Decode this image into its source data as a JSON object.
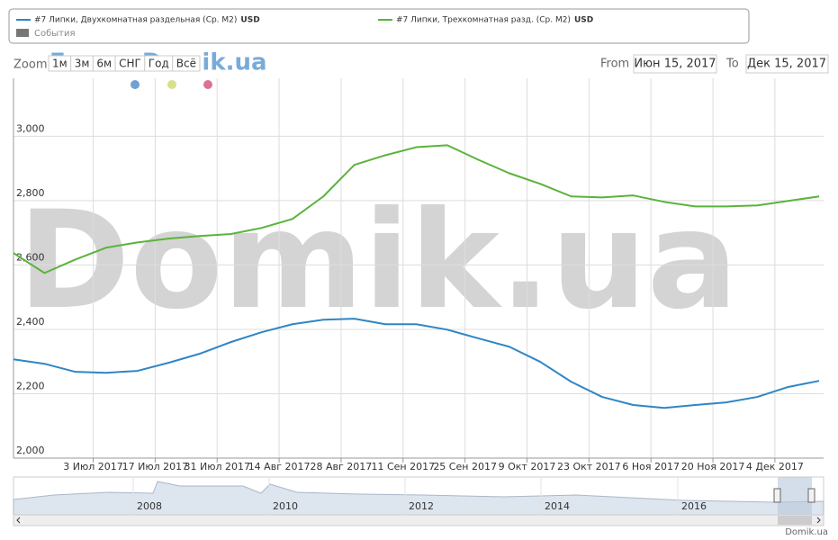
{
  "chart_data": {
    "type": "line",
    "watermark": "Domik.ua",
    "forum_watermark": "Forum.Domik.ua",
    "credit": "Domik.ua",
    "events_label": "События",
    "currency": "USD",
    "zoom_label": "Zoom",
    "zoom_buttons": [
      "1м",
      "3м",
      "6м",
      "СНГ",
      "Год",
      "Всё"
    ],
    "from_label": "From",
    "from_value": "Июн 15, 2017",
    "to_label": "To",
    "to_value": "Дек 15, 2017",
    "navigator_labels": [
      "2008",
      "2010",
      "2012",
      "2014",
      "2016"
    ],
    "x": [
      "2017-06-15",
      "2017-06-22",
      "2017-06-29",
      "2017-07-06",
      "2017-07-13",
      "2017-07-20",
      "2017-07-27",
      "2017-08-03",
      "2017-08-10",
      "2017-08-17",
      "2017-08-24",
      "2017-08-31",
      "2017-09-07",
      "2017-09-14",
      "2017-09-21",
      "2017-09-28",
      "2017-10-05",
      "2017-10-12",
      "2017-10-19",
      "2017-10-26",
      "2017-11-02",
      "2017-11-09",
      "2017-11-16",
      "2017-11-23",
      "2017-11-30",
      "2017-12-07",
      "2017-12-14"
    ],
    "xlim": [
      "2017-06-15",
      "2017-12-15"
    ],
    "xticks": [
      {
        "value": "2017-07-03",
        "label": "3 Июл 2017"
      },
      {
        "value": "2017-07-17",
        "label": "17 Июл 2017"
      },
      {
        "value": "2017-07-31",
        "label": "31 Июл 2017"
      },
      {
        "value": "2017-08-14",
        "label": "14 Авг 2017"
      },
      {
        "value": "2017-08-28",
        "label": "28 Авг 2017"
      },
      {
        "value": "2017-09-11",
        "label": "11 Сен 2017"
      },
      {
        "value": "2017-09-25",
        "label": "25 Сен 2017"
      },
      {
        "value": "2017-10-09",
        "label": "9 Окт 2017"
      },
      {
        "value": "2017-10-23",
        "label": "23 Окт 2017"
      },
      {
        "value": "2017-11-06",
        "label": "6 Ноя 2017"
      },
      {
        "value": "2017-11-20",
        "label": "20 Ноя 2017"
      },
      {
        "value": "2017-12-04",
        "label": "4 Дек 2017"
      }
    ],
    "ylim": [
      2000,
      3180
    ],
    "yticks": [
      {
        "value": 2000,
        "label": "2,000"
      },
      {
        "value": 2200,
        "label": "2,200"
      },
      {
        "value": 2400,
        "label": "2,400"
      },
      {
        "value": 2600,
        "label": "2,600"
      },
      {
        "value": 2800,
        "label": "2,800"
      },
      {
        "value": 3000,
        "label": "3,000"
      }
    ],
    "grid": true,
    "series": [
      {
        "name": "#7 Липки, Двухкомнатная раздельная (Ср. М2)",
        "color": "#2f86c4",
        "values": [
          2307,
          2293,
          2268,
          2265,
          2271,
          2296,
          2324,
          2360,
          2391,
          2416,
          2430,
          2433,
          2416,
          2416,
          2399,
          2372,
          2346,
          2299,
          2237,
          2190,
          2165,
          2156,
          2165,
          2173,
          2190,
          2221,
          2240
        ]
      },
      {
        "name": "#7 Липки, Трехкомнатная разд. (Ср. М2)",
        "color": "#5ab33a",
        "values": [
          2637,
          2575,
          2617,
          2654,
          2670,
          2682,
          2690,
          2696,
          2715,
          2743,
          2813,
          2911,
          2941,
          2966,
          2972,
          2927,
          2885,
          2852,
          2813,
          2810,
          2816,
          2796,
          2782,
          2782,
          2785,
          2799,
          2813
        ]
      }
    ]
  }
}
